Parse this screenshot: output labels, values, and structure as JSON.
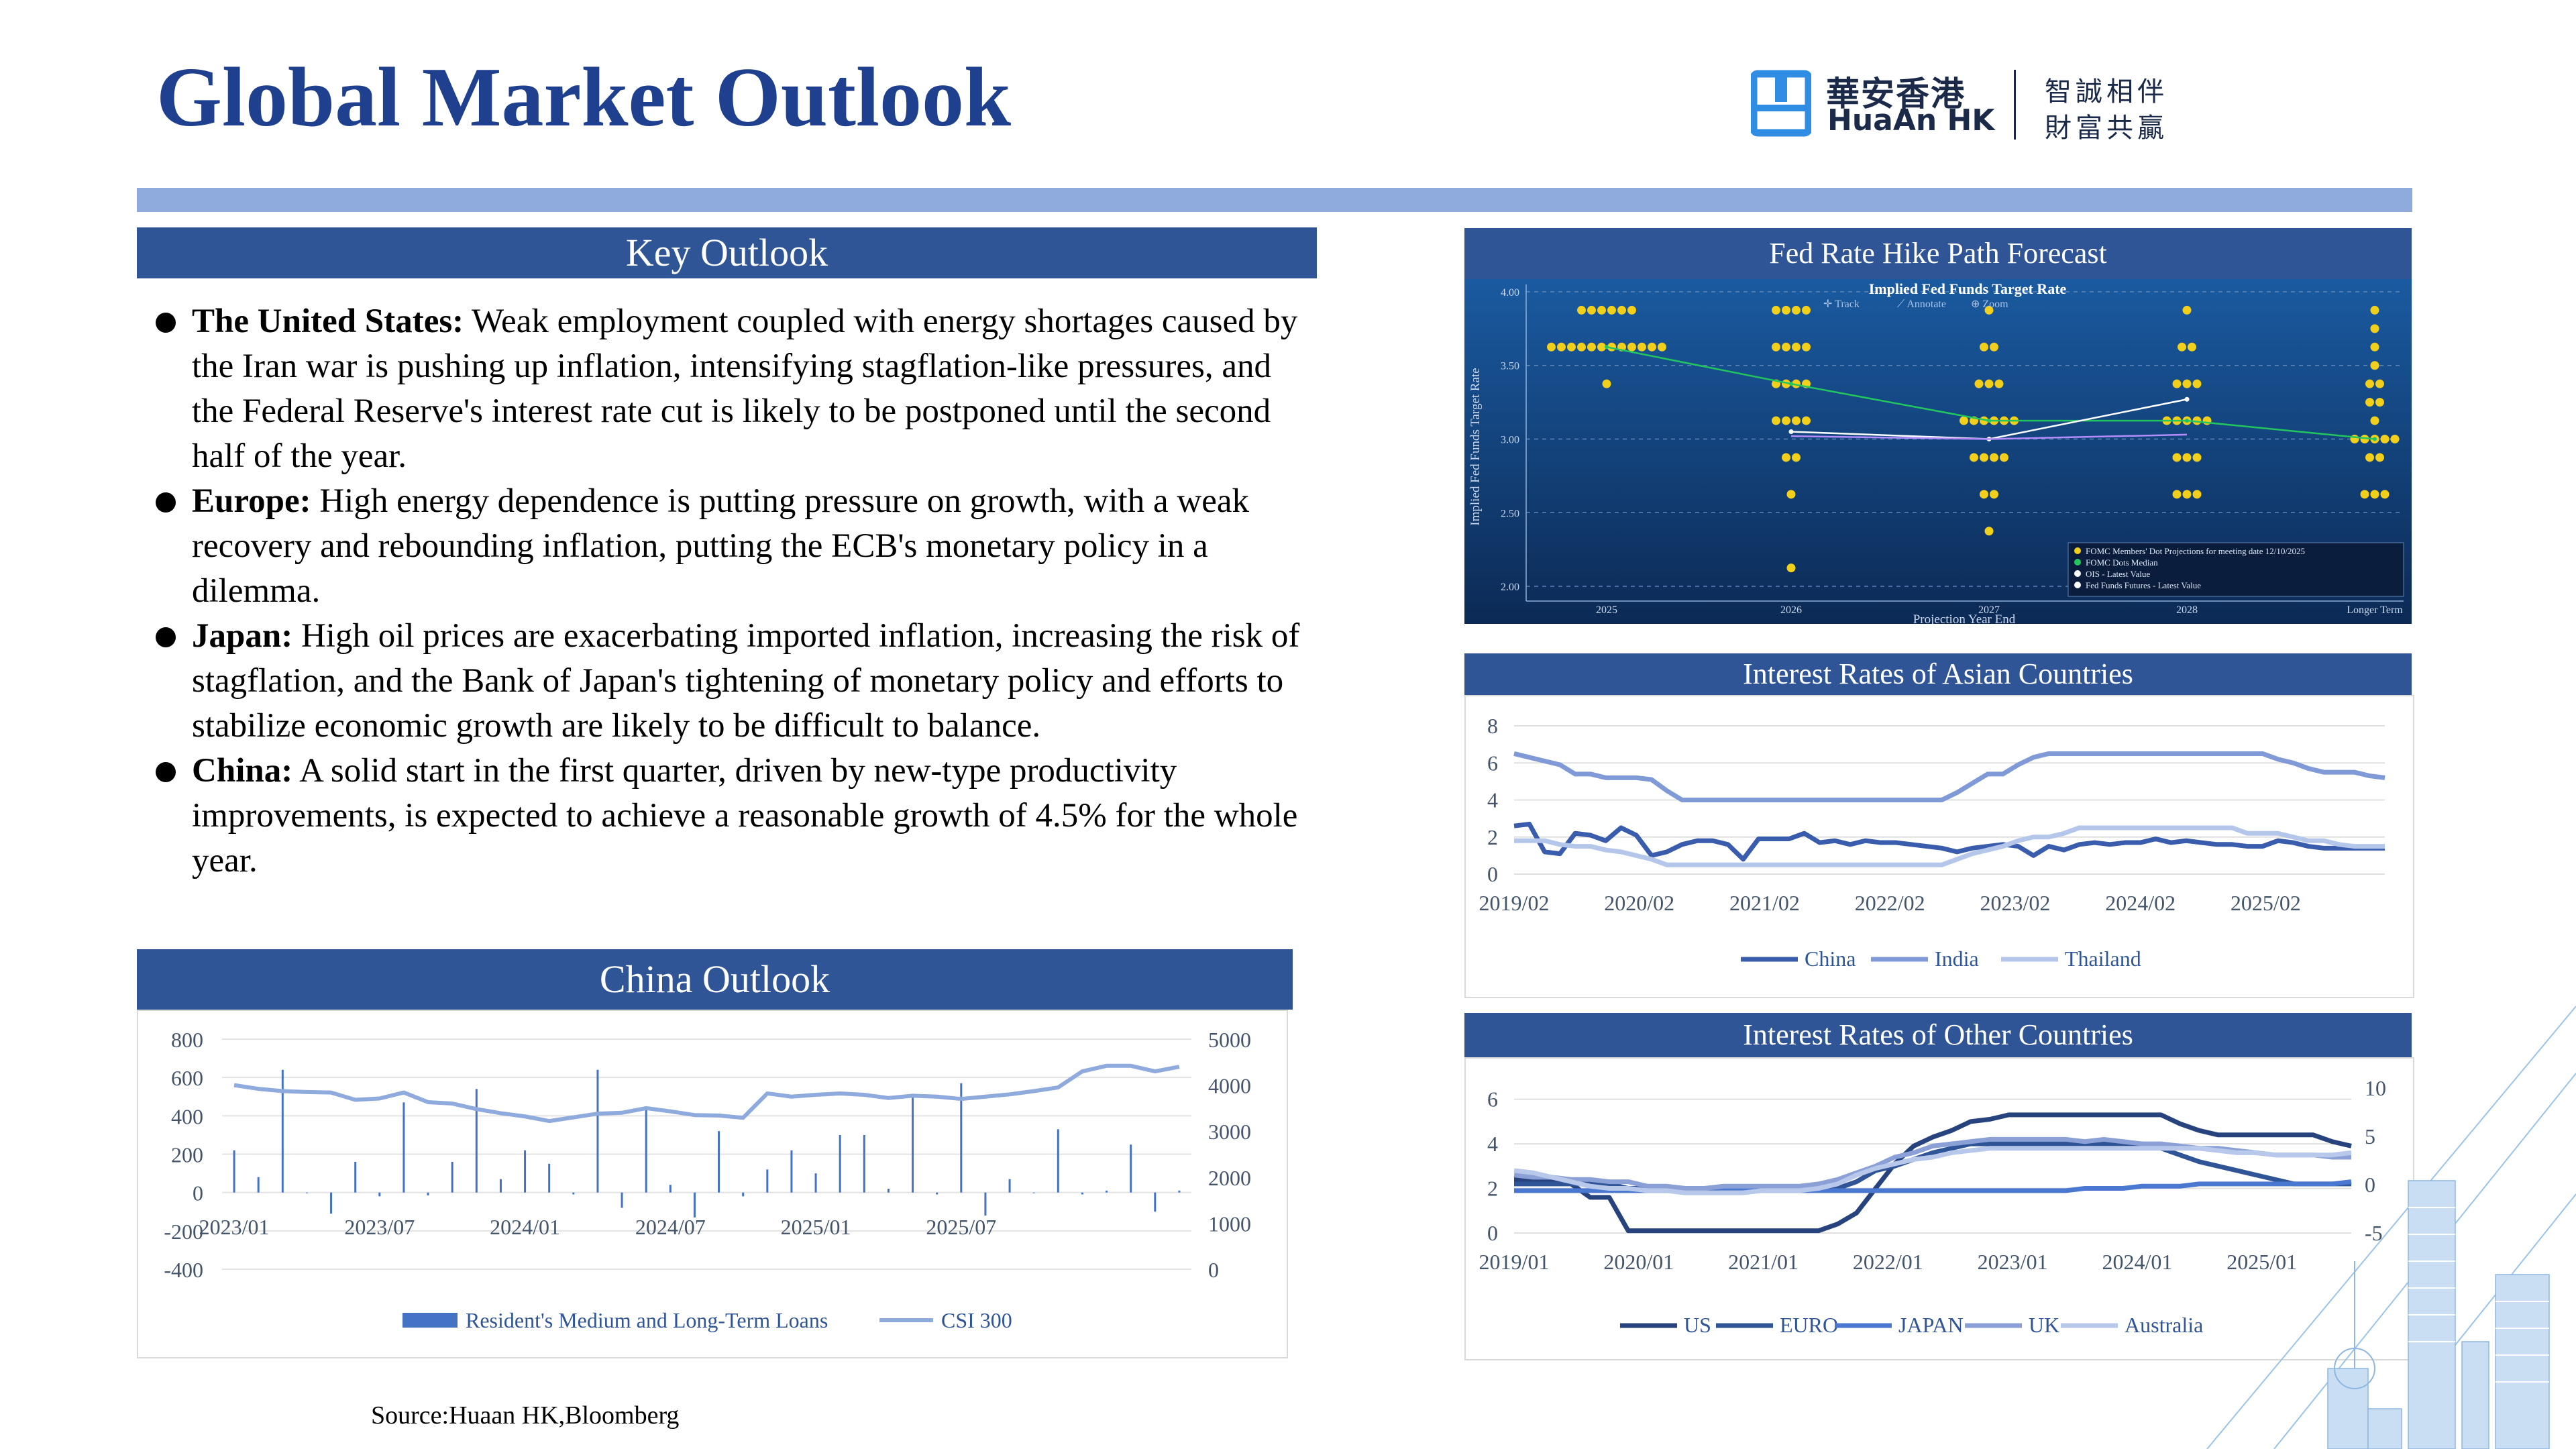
{
  "title": "Global Market Outlook",
  "logo": {
    "cn": "華安香港",
    "en": "HuaAn HK",
    "tag_line1": "智誠相伴",
    "tag_line2": "財富共贏"
  },
  "key_outlook": {
    "heading": "Key Outlook",
    "items": [
      {
        "label": "The United States:",
        "text": " Weak employment coupled with energy shortages caused by the Iran war is pushing up inflation, intensifying stagflation-like pressures, and the Federal Reserve's interest rate cut is likely to be postponed until the second half of the year."
      },
      {
        "label": "Europe:",
        "text": " High energy dependence is putting pressure on growth, with a weak recovery and rebounding inflation, putting the ECB's monetary policy in a dilemma."
      },
      {
        "label": "Japan:",
        "text": " High oil prices are exacerbating imported inflation, increasing the risk of stagflation, and the Bank of Japan's tightening of monetary policy and efforts to stabilize economic growth are likely to be difficult to balance."
      },
      {
        "label": "China:",
        "text": " A solid start in the first quarter, driven by new-type productivity improvements, is expected to achieve a reasonable growth of 4.5% for the whole year."
      }
    ]
  },
  "china_outlook": {
    "heading": "China Outlook"
  },
  "fed": {
    "heading": "Fed Rate Hike Path Forecast",
    "inner_title": "Implied Fed Funds Target Rate",
    "toolbar": [
      "Track",
      "Annotate",
      "Zoom"
    ],
    "legend": [
      "FOMC Members' Dot Projections for meeting date 12/10/2025",
      "FOMC Dots Median",
      "OIS - Latest Value",
      "Fed Funds Futures - Latest Value"
    ]
  },
  "asia": {
    "heading": "Interest Rates of Asian Countries"
  },
  "other": {
    "heading": "Interest Rates of Other Countries"
  },
  "source": "Source:Huaan HK,Bloomberg",
  "colors": {
    "title": "#1f3f8f",
    "bar": "#2f5597",
    "rule": "#8faadc"
  },
  "chart_data": [
    {
      "id": "china",
      "type": "bar",
      "x_labels": [
        "2023/01",
        "2023/07",
        "2024/01",
        "2024/07",
        "2025/01",
        "2025/07"
      ],
      "series": [
        {
          "name": "Resident's Medium and Long-Term Loans",
          "axis": "left",
          "values": [
            220,
            80,
            640,
            0,
            -110,
            160,
            -20,
            470,
            -15,
            160,
            540,
            70,
            220,
            150,
            -10,
            640,
            -80,
            450,
            40,
            -130,
            320,
            -20,
            120,
            220,
            100,
            300,
            300,
            20,
            510,
            -10,
            570,
            -120,
            70,
            0,
            330,
            -10,
            10,
            250,
            -100,
            10
          ]
        },
        {
          "name": "CSI 300",
          "axis": "right",
          "values": [
            4000,
            3920,
            3870,
            3850,
            3840,
            3680,
            3710,
            3840,
            3630,
            3600,
            3480,
            3390,
            3320,
            3220,
            3300,
            3380,
            3400,
            3500,
            3430,
            3350,
            3340,
            3290,
            3820,
            3750,
            3790,
            3820,
            3790,
            3720,
            3770,
            3750,
            3700,
            3750,
            3800,
            3870,
            3950,
            4300,
            4420,
            4420,
            4300,
            4400
          ]
        }
      ],
      "y_left": {
        "ticks": [
          "800",
          "600",
          "400",
          "200",
          "0",
          "-200",
          "-400"
        ],
        "range": [
          -400,
          800
        ]
      },
      "y_right": {
        "ticks": [
          "5000",
          "4000",
          "3000",
          "2000",
          "1000",
          "0"
        ],
        "range": [
          0,
          5000
        ]
      }
    },
    {
      "id": "fed",
      "type": "scatter",
      "x_labels": [
        "2025",
        "2026",
        "2027",
        "2028",
        "Longer Term"
      ],
      "y_ticks": [
        "4.00",
        "3.50",
        "3.00",
        "2.50",
        "2.00"
      ],
      "y_range": [
        1.9,
        4.05
      ],
      "xlabel": "Projection Year End",
      "ylabel": "Implied Fed Funds Target Rate",
      "dots": [
        {
          "x": 0,
          "rows": [
            [
              3.875,
              6
            ],
            [
              3.625,
              12
            ],
            [
              3.375,
              1
            ]
          ]
        },
        {
          "x": 1,
          "rows": [
            [
              3.875,
              4
            ],
            [
              3.625,
              4
            ],
            [
              3.375,
              4
            ],
            [
              3.125,
              4
            ],
            [
              2.875,
              2
            ],
            [
              2.625,
              1
            ],
            [
              2.125,
              1
            ]
          ]
        },
        {
          "x": 2,
          "rows": [
            [
              3.875,
              1
            ],
            [
              3.625,
              2
            ],
            [
              3.375,
              3
            ],
            [
              3.125,
              6
            ],
            [
              2.875,
              4
            ],
            [
              2.625,
              2
            ],
            [
              2.375,
              1
            ]
          ]
        },
        {
          "x": 3,
          "rows": [
            [
              3.875,
              1
            ],
            [
              3.625,
              2
            ],
            [
              3.375,
              3
            ],
            [
              3.125,
              5
            ],
            [
              2.875,
              3
            ],
            [
              2.625,
              3
            ]
          ]
        },
        {
          "x": 4,
          "rows": [
            [
              3.875,
              1
            ],
            [
              3.75,
              1
            ],
            [
              3.625,
              1
            ],
            [
              3.5,
              1
            ],
            [
              3.375,
              2
            ],
            [
              3.25,
              2
            ],
            [
              3.125,
              1
            ],
            [
              3.0,
              5
            ],
            [
              2.875,
              2
            ],
            [
              2.625,
              3
            ]
          ]
        }
      ],
      "median": [
        3.625,
        3.375,
        3.125,
        3.125,
        3.0
      ],
      "ois": [
        [
          1,
          3.05
        ],
        [
          2,
          3.0
        ],
        [
          3,
          3.27
        ]
      ],
      "futures": [
        [
          1,
          3.02
        ],
        [
          2,
          3.0
        ],
        [
          3,
          3.03
        ]
      ]
    },
    {
      "id": "asia",
      "type": "line",
      "x_labels": [
        "2019/02",
        "2020/02",
        "2021/02",
        "2022/02",
        "2023/02",
        "2024/02",
        "2025/02"
      ],
      "y_ticks": [
        "8",
        "6",
        "4",
        "2",
        "0"
      ],
      "y_range": [
        0,
        8
      ],
      "series": [
        {
          "name": "China",
          "color": "#3a5cac",
          "values": [
            2.6,
            2.7,
            1.2,
            1.1,
            2.2,
            2.1,
            1.8,
            2.5,
            2.1,
            1.0,
            1.2,
            1.6,
            1.8,
            1.8,
            1.6,
            0.8,
            1.9,
            1.9,
            1.9,
            2.2,
            1.7,
            1.8,
            1.6,
            1.8,
            1.7,
            1.7,
            1.6,
            1.5,
            1.4,
            1.2,
            1.4,
            1.5,
            1.6,
            1.5,
            1.0,
            1.5,
            1.3,
            1.6,
            1.7,
            1.6,
            1.7,
            1.7,
            1.9,
            1.7,
            1.8,
            1.7,
            1.6,
            1.6,
            1.5,
            1.5,
            1.8,
            1.7,
            1.5,
            1.4,
            1.4,
            1.4,
            1.4,
            1.4
          ]
        },
        {
          "name": "India",
          "color": "#7f9ad6",
          "values": [
            6.5,
            6.3,
            6.1,
            5.9,
            5.4,
            5.4,
            5.2,
            5.2,
            5.2,
            5.1,
            4.5,
            4.0,
            4.0,
            4.0,
            4.0,
            4.0,
            4.0,
            4.0,
            4.0,
            4.0,
            4.0,
            4.0,
            4.0,
            4.0,
            4.0,
            4.0,
            4.0,
            4.0,
            4.0,
            4.4,
            4.9,
            5.4,
            5.4,
            5.9,
            6.3,
            6.5,
            6.5,
            6.5,
            6.5,
            6.5,
            6.5,
            6.5,
            6.5,
            6.5,
            6.5,
            6.5,
            6.5,
            6.5,
            6.5,
            6.5,
            6.2,
            6.0,
            5.7,
            5.5,
            5.5,
            5.5,
            5.3,
            5.2
          ]
        },
        {
          "name": "Thailand",
          "color": "#b4c6ea",
          "values": [
            1.8,
            1.8,
            1.8,
            1.6,
            1.5,
            1.5,
            1.3,
            1.2,
            1.0,
            0.8,
            0.5,
            0.5,
            0.5,
            0.5,
            0.5,
            0.5,
            0.5,
            0.5,
            0.5,
            0.5,
            0.5,
            0.5,
            0.5,
            0.5,
            0.5,
            0.5,
            0.5,
            0.5,
            0.5,
            0.8,
            1.1,
            1.3,
            1.5,
            1.8,
            2.0,
            2.0,
            2.2,
            2.5,
            2.5,
            2.5,
            2.5,
            2.5,
            2.5,
            2.5,
            2.5,
            2.5,
            2.5,
            2.5,
            2.2,
            2.2,
            2.2,
            2.0,
            1.8,
            1.8,
            1.6,
            1.5,
            1.5,
            1.5
          ]
        }
      ]
    },
    {
      "id": "other",
      "type": "line",
      "x_labels": [
        "2019/01",
        "2020/01",
        "2021/01",
        "2022/01",
        "2023/01",
        "2024/01",
        "2025/01"
      ],
      "y_left": {
        "ticks": [
          "6",
          "4",
          "2",
          "0"
        ],
        "range": [
          0,
          6.5
        ]
      },
      "y_right": {
        "ticks": [
          "10",
          "5",
          "0",
          "-5"
        ],
        "range": [
          -5,
          10
        ]
      },
      "series": [
        {
          "name": "US",
          "color": "#27437e",
          "axis": "left",
          "values": [
            2.4,
            2.4,
            2.4,
            2.2,
            1.6,
            1.6,
            0.1,
            0.1,
            0.1,
            0.1,
            0.1,
            0.1,
            0.1,
            0.1,
            0.1,
            0.1,
            0.1,
            0.4,
            0.9,
            2.0,
            3.1,
            3.9,
            4.3,
            4.6,
            5.0,
            5.1,
            5.3,
            5.3,
            5.3,
            5.3,
            5.3,
            5.3,
            5.3,
            5.3,
            5.3,
            4.9,
            4.6,
            4.4,
            4.4,
            4.4,
            4.4,
            4.4,
            4.4,
            4.1,
            3.9
          ]
        },
        {
          "name": "EURO",
          "color": "#2f5597",
          "axis": "left",
          "values": [
            2.2,
            2.2,
            2.2,
            2.2,
            2.2,
            2.2,
            2.0,
            2.0,
            2.0,
            2.0,
            2.0,
            2.0,
            2.0,
            2.0,
            2.0,
            2.0,
            2.0,
            2.0,
            2.3,
            2.8,
            3.0,
            3.3,
            3.6,
            3.8,
            4.0,
            4.0,
            4.0,
            4.0,
            4.0,
            4.0,
            4.0,
            4.0,
            4.0,
            4.0,
            3.8,
            3.5,
            3.2,
            3.0,
            2.8,
            2.6,
            2.4,
            2.2,
            2.2,
            2.2,
            2.2
          ]
        },
        {
          "name": "JAPAN",
          "color": "#4a78d0",
          "axis": "left",
          "values": [
            1.9,
            1.9,
            1.9,
            1.9,
            1.9,
            1.9,
            1.9,
            1.9,
            1.9,
            1.9,
            1.9,
            1.9,
            1.9,
            1.9,
            1.9,
            1.9,
            1.9,
            1.9,
            1.9,
            1.9,
            1.9,
            1.9,
            1.9,
            1.9,
            1.9,
            1.9,
            1.9,
            1.9,
            1.9,
            1.9,
            2.0,
            2.0,
            2.0,
            2.1,
            2.1,
            2.1,
            2.2,
            2.2,
            2.2,
            2.2,
            2.2,
            2.2,
            2.2,
            2.2,
            2.3
          ]
        },
        {
          "name": "UK",
          "color": "#8aa0d6",
          "axis": "left",
          "values": [
            2.6,
            2.5,
            2.5,
            2.4,
            2.4,
            2.3,
            2.3,
            2.1,
            2.1,
            2.0,
            2.0,
            2.1,
            2.1,
            2.1,
            2.1,
            2.1,
            2.2,
            2.4,
            2.7,
            3.0,
            3.4,
            3.6,
            3.9,
            4.0,
            4.1,
            4.2,
            4.2,
            4.2,
            4.2,
            4.2,
            4.1,
            4.2,
            4.1,
            4.0,
            4.0,
            3.9,
            3.8,
            3.8,
            3.7,
            3.6,
            3.5,
            3.5,
            3.5,
            3.4,
            3.4
          ]
        },
        {
          "name": "Australia",
          "color": "#b8c8ea",
          "axis": "left",
          "values": [
            2.8,
            2.7,
            2.5,
            2.3,
            2.1,
            2.0,
            2.0,
            1.9,
            1.9,
            1.8,
            1.8,
            1.8,
            1.8,
            1.9,
            1.9,
            1.9,
            2.0,
            2.2,
            2.6,
            2.9,
            3.1,
            3.3,
            3.4,
            3.6,
            3.7,
            3.8,
            3.8,
            3.8,
            3.8,
            3.8,
            3.8,
            3.8,
            3.8,
            3.8,
            3.8,
            3.8,
            3.8,
            3.7,
            3.6,
            3.6,
            3.5,
            3.5,
            3.5,
            3.5,
            3.6
          ]
        }
      ]
    }
  ]
}
